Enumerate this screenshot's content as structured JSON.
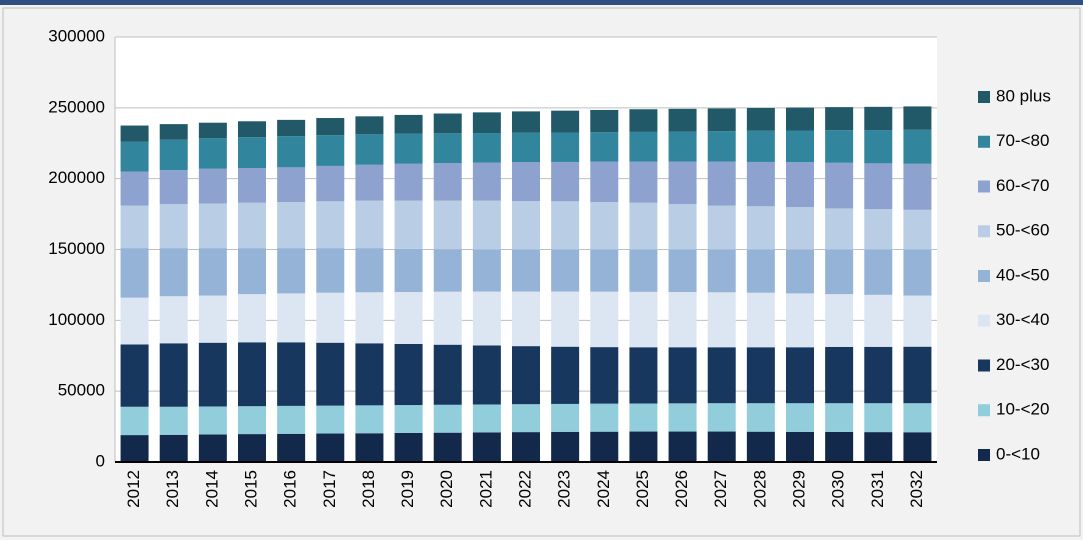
{
  "chart_data": {
    "type": "stacked_bar",
    "categories": [
      "2012",
      "2013",
      "2014",
      "2015",
      "2016",
      "2017",
      "2018",
      "2019",
      "2020",
      "2021",
      "2022",
      "2023",
      "2024",
      "2025",
      "2026",
      "2027",
      "2028",
      "2029",
      "2030",
      "2031",
      "2032"
    ],
    "series": [
      {
        "name": "0-<10",
        "color": "#13294b",
        "values": [
          19000,
          19200,
          19400,
          19700,
          19900,
          20100,
          20300,
          20500,
          20700,
          20900,
          21100,
          21300,
          21400,
          21500,
          21500,
          21500,
          21400,
          21300,
          21200,
          21100,
          21000
        ]
      },
      {
        "name": "10-<20",
        "color": "#92cddc",
        "values": [
          20000,
          19800,
          19800,
          19700,
          19700,
          19700,
          19700,
          19700,
          19700,
          19700,
          19700,
          19700,
          19800,
          19800,
          19900,
          20000,
          20100,
          20200,
          20300,
          20400,
          20500
        ]
      },
      {
        "name": "20-<30",
        "color": "#17375e",
        "values": [
          44000,
          44800,
          45000,
          45100,
          44900,
          44400,
          43800,
          43100,
          42400,
          41700,
          41000,
          40400,
          39900,
          39700,
          39600,
          39500,
          39500,
          39500,
          39700,
          39800,
          39900
        ]
      },
      {
        "name": "30-<40",
        "color": "#dce6f2",
        "values": [
          33000,
          33200,
          33300,
          34000,
          34500,
          35300,
          36000,
          36700,
          37400,
          38000,
          38500,
          38900,
          39100,
          39100,
          39000,
          38800,
          38500,
          38000,
          37300,
          36700,
          36100
        ]
      },
      {
        "name": "40-<50",
        "color": "#95b3d7",
        "values": [
          35000,
          34000,
          33500,
          32500,
          32000,
          31500,
          31200,
          30500,
          30000,
          29700,
          29700,
          29700,
          29800,
          29900,
          30000,
          30200,
          30500,
          31000,
          31500,
          32000,
          32500
        ]
      },
      {
        "name": "50-<60",
        "color": "#b9cde5",
        "values": [
          30000,
          31000,
          31500,
          32000,
          32500,
          33000,
          33500,
          34000,
          34300,
          34500,
          34200,
          34000,
          33500,
          33000,
          32000,
          31000,
          30500,
          30000,
          29000,
          28500,
          28000
        ]
      },
      {
        "name": "60-<70",
        "color": "#8ea2d0",
        "values": [
          24000,
          24000,
          24500,
          24500,
          24500,
          25000,
          25300,
          26000,
          26500,
          26800,
          27400,
          27800,
          28500,
          29000,
          30000,
          31000,
          31300,
          31600,
          32200,
          32300,
          32500
        ]
      },
      {
        "name": "70-<80",
        "color": "#31859c",
        "values": [
          21000,
          21500,
          21500,
          21800,
          22000,
          21700,
          21500,
          21300,
          21000,
          20900,
          20800,
          20800,
          20800,
          21000,
          21200,
          21500,
          22000,
          22400,
          23000,
          23500,
          24000
        ]
      },
      {
        "name": "80 plus",
        "color": "#215968",
        "values": [
          11500,
          11000,
          11000,
          11200,
          11500,
          12100,
          12700,
          13200,
          14000,
          14600,
          15100,
          15400,
          15700,
          16000,
          16100,
          16100,
          16100,
          16200,
          16300,
          16400,
          16500
        ]
      }
    ],
    "ylim": [
      0,
      300000
    ],
    "yticks": [
      0,
      50000,
      100000,
      150000,
      200000,
      250000,
      300000
    ],
    "grid": true,
    "legend": "right"
  }
}
